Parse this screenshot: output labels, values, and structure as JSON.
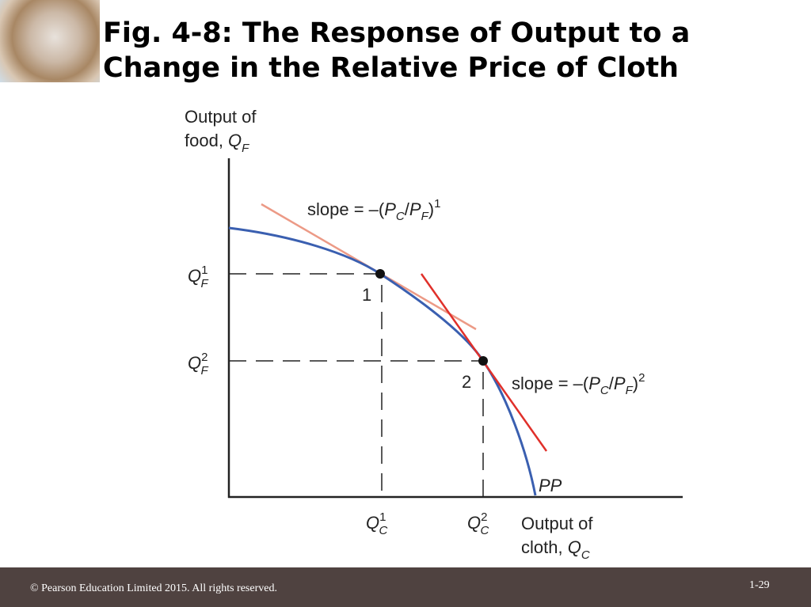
{
  "slide": {
    "title_line1": "Fig. 4-8: The Response of Output to a",
    "title_line2": "Change in the Relative Price of Cloth",
    "logo": "globe-image"
  },
  "diagram": {
    "y_axis_label_line1": "Output of",
    "y_axis_label_line2": "food, ",
    "y_axis_var": "Q",
    "y_axis_var_sub": "F",
    "x_axis_label_line1": "Output of",
    "x_axis_label_line2": "cloth, ",
    "x_axis_var": "Q",
    "x_axis_var_sub": "C",
    "curve_label": "PP",
    "point1": "1",
    "point2": "2",
    "qf1": {
      "var": "Q",
      "sup": "1",
      "sub": "F"
    },
    "qf2": {
      "var": "Q",
      "sup": "2",
      "sub": "F"
    },
    "qc1": {
      "var": "Q",
      "sup": "1",
      "sub": "C"
    },
    "qc2": {
      "var": "Q",
      "sup": "2",
      "sub": "C"
    },
    "slope1": {
      "prefix": "slope = –(",
      "pc": "P",
      "pc_sub": "C",
      "slash": "/",
      "pf": "P",
      "pf_sub": "F",
      "close": ")",
      "sup": "1"
    },
    "slope2": {
      "prefix": "slope = –(",
      "pc": "P",
      "pc_sub": "C",
      "slash": "/",
      "pf": "P",
      "pf_sub": "F",
      "close": ")",
      "sup": "2"
    },
    "colors": {
      "curve": "#3a5fb0",
      "tangent1": "#ec9a86",
      "tangent2": "#e0302a",
      "axes": "#222222"
    }
  },
  "footer": {
    "copyright": "© Pearson Education Limited 2015. All rights reserved.",
    "page_number": "1-29"
  }
}
